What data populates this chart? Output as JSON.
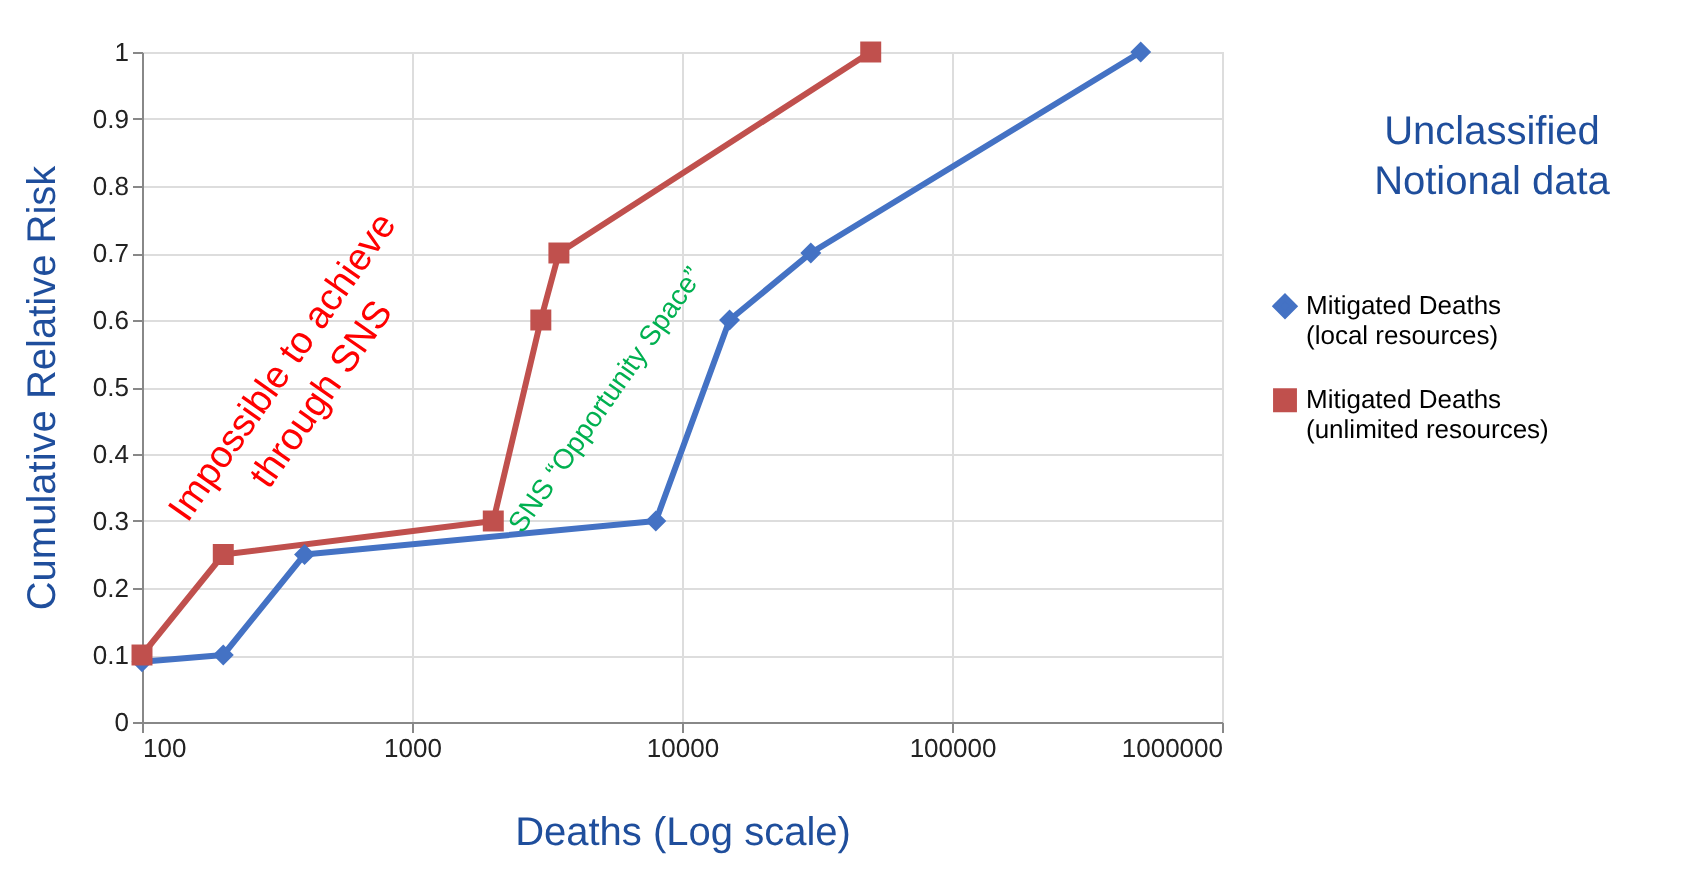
{
  "chart_data": {
    "type": "line",
    "xlabel": "Deaths  (Log scale)",
    "ylabel": "Cumulative  Relative  Risk",
    "log": "x",
    "grid": true,
    "legend": "right",
    "xlim": [
      100,
      1000000
    ],
    "xticks": [
      100,
      1000,
      10000,
      100000,
      1000000
    ],
    "ylim": [
      0,
      1
    ],
    "yticks": [
      0,
      0.1,
      0.2,
      0.3,
      0.4,
      0.5,
      0.6,
      0.7,
      0.8,
      0.9,
      1
    ],
    "series": [
      {
        "name": "Mitigated Deaths\n(local resources)",
        "color": "#4472c4",
        "marker": "diamond",
        "x": [
          100,
          200,
          400,
          8000,
          15000,
          30000,
          500000
        ],
        "values": [
          0.09,
          0.1,
          0.25,
          0.3,
          0.6,
          0.7,
          1
        ]
      },
      {
        "name": "Mitigated Deaths\n(unlimited resources)",
        "color": "#c0504d",
        "marker": "square",
        "x": [
          100,
          200,
          2000,
          3000,
          3500,
          50000
        ],
        "values": [
          0.1,
          0.25,
          0.3,
          0.6,
          0.7,
          1
        ]
      }
    ],
    "annotations": [
      "Impossible to achieve\nthrough SNS",
      "SNS “Opportunity Space”",
      "Unclassified\nNotional data"
    ]
  }
}
